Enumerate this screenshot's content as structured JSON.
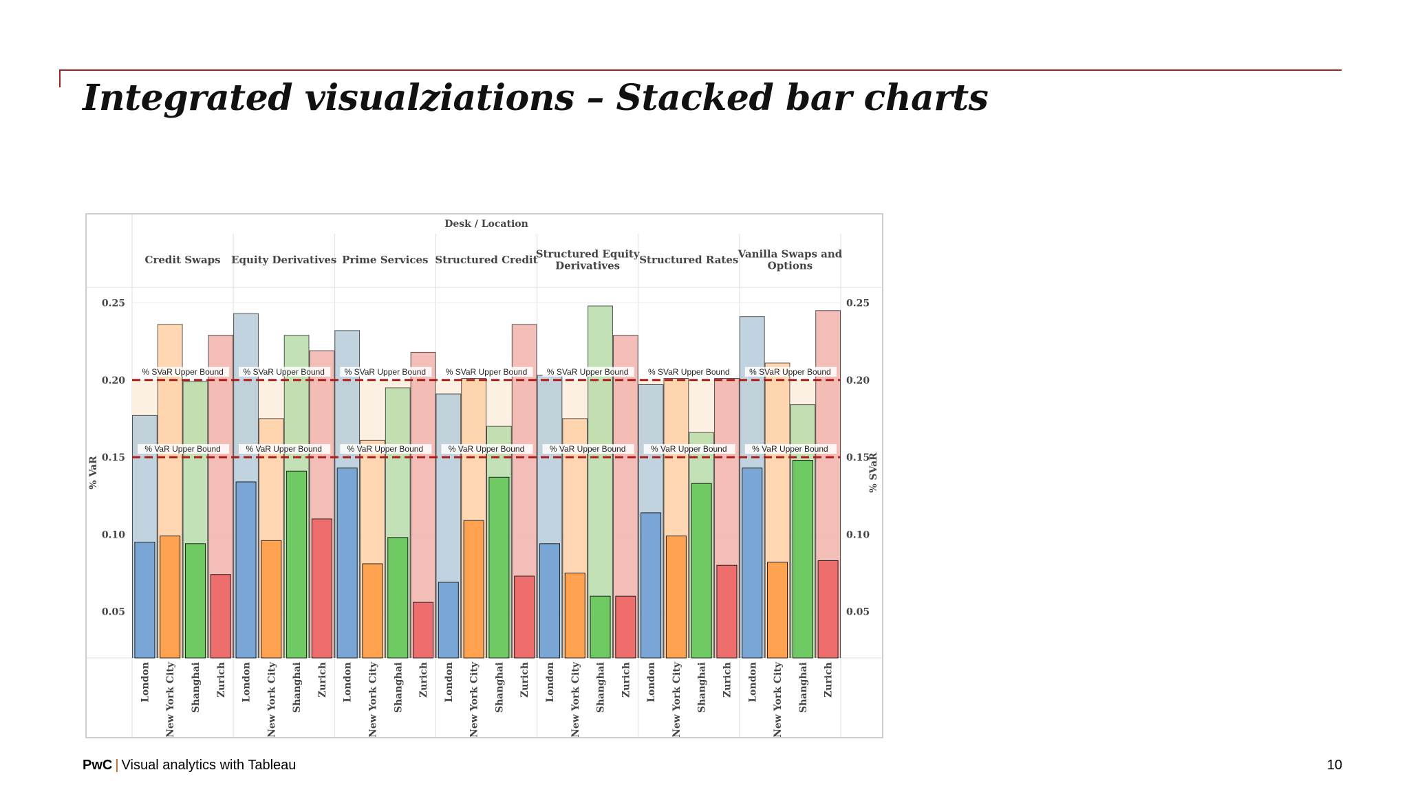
{
  "slide": {
    "title": "Integrated visualziations – Stacked bar charts",
    "footer_brand": "PwC",
    "footer_separator": "|",
    "footer_text": "Visual analytics with Tableau",
    "page_number": "10"
  },
  "chart_data": {
    "type": "bar",
    "header_title": "Desk  /  Location",
    "left_axis_label": "% VaR",
    "right_axis_label": "% SVaR",
    "ylim": [
      0.02,
      0.26
    ],
    "yticks": [
      0.05,
      0.1,
      0.15,
      0.2,
      0.25
    ],
    "ytick_labels": [
      "0.05",
      "0.10",
      "0.15",
      "0.20",
      "0.25"
    ],
    "desks": [
      "Credit Swaps",
      "Equity Derivatives",
      "Prime Services",
      "Structured Credit",
      "Structured Equity Derivatives",
      "Structured Rates",
      "Vanilla Swaps and Options"
    ],
    "locations": [
      "London",
      "New York City",
      "Shanghai",
      "Zurich"
    ],
    "series": [
      {
        "name": "% VaR",
        "values": [
          [
            0.095,
            0.099,
            0.094,
            0.074
          ],
          [
            0.134,
            0.096,
            0.141,
            0.11
          ],
          [
            0.143,
            0.081,
            0.098,
            0.056
          ],
          [
            0.069,
            0.109,
            0.137,
            0.073
          ],
          [
            0.094,
            0.075,
            0.06,
            0.06
          ],
          [
            0.114,
            0.099,
            0.133,
            0.08
          ],
          [
            0.143,
            0.082,
            0.148,
            0.083
          ]
        ]
      },
      {
        "name": "% SVaR",
        "values": [
          [
            0.177,
            0.236,
            0.199,
            0.229
          ],
          [
            0.243,
            0.175,
            0.229,
            0.219
          ],
          [
            0.232,
            0.161,
            0.195,
            0.218
          ],
          [
            0.191,
            0.201,
            0.17,
            0.236
          ],
          [
            0.203,
            0.175,
            0.248,
            0.229
          ],
          [
            0.197,
            0.201,
            0.166,
            0.201
          ],
          [
            0.241,
            0.211,
            0.184,
            0.245
          ]
        ]
      }
    ],
    "reference_lines": [
      {
        "label": "% SVaR Upper Bound",
        "value": 0.2
      },
      {
        "label": "% VaR Upper Bound",
        "value": 0.15
      }
    ],
    "colors": {
      "London": {
        "dark": "#7aa6d6",
        "light": "#b5cbd8"
      },
      "New York City": {
        "dark": "#ffa24f",
        "light": "#ffd0a6"
      },
      "Shanghai": {
        "dark": "#6fca63",
        "light": "#b9dca9"
      },
      "Zurich": {
        "dark": "#ee6d6d",
        "light": "#f1b3ac"
      },
      "band": "#fcf0e3",
      "reference_line": "#b01c1c",
      "bar_outline": "#222222",
      "text": "#444444",
      "grid": "#dedede",
      "frame": "#bdbdbd"
    },
    "grid": true
  }
}
